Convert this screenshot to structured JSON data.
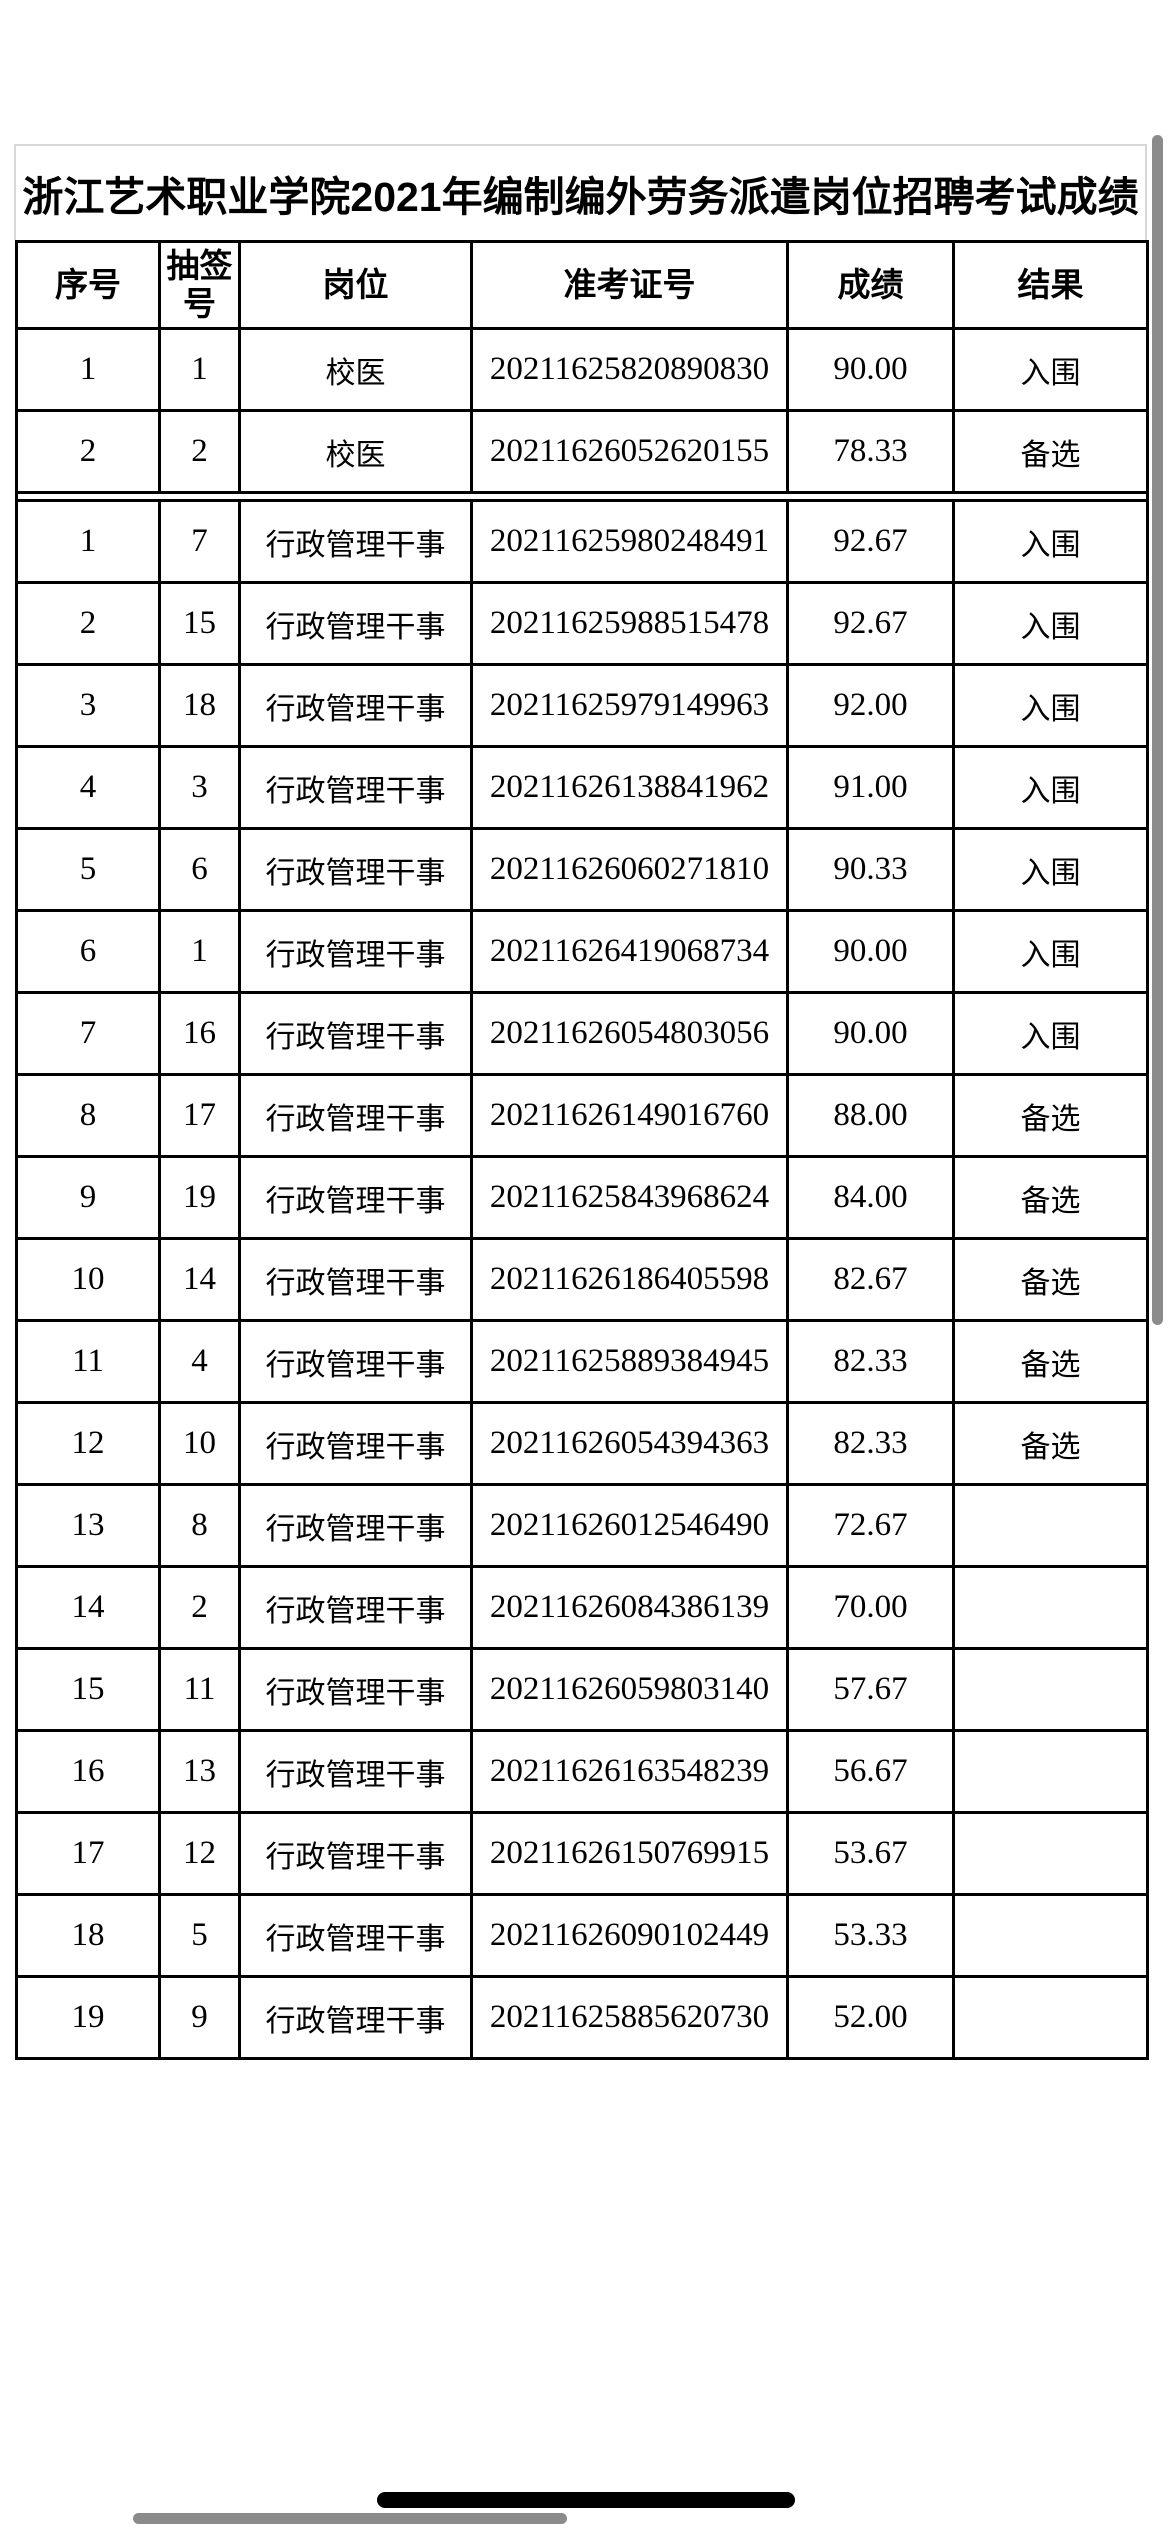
{
  "title": "浙江艺术职业学院2021年编制编外劳务派遣岗位招聘考试成绩",
  "table": {
    "headers": [
      "序号",
      "抽签号",
      "岗位",
      "准考证号",
      "成绩",
      "结果"
    ],
    "column_names": [
      "index",
      "lottery-number",
      "position",
      "ticket-number",
      "score",
      "result"
    ],
    "sections": [
      {
        "position": "校医",
        "rows": [
          [
            "1",
            "1",
            "校医",
            "20211625820890830",
            "90.00",
            "入围"
          ],
          [
            "2",
            "2",
            "校医",
            "20211626052620155",
            "78.33",
            "备选"
          ]
        ]
      },
      {
        "position": "行政管理干事",
        "rows": [
          [
            "1",
            "7",
            "行政管理干事",
            "20211625980248491",
            "92.67",
            "入围"
          ],
          [
            "2",
            "15",
            "行政管理干事",
            "20211625988515478",
            "92.67",
            "入围"
          ],
          [
            "3",
            "18",
            "行政管理干事",
            "20211625979149963",
            "92.00",
            "入围"
          ],
          [
            "4",
            "3",
            "行政管理干事",
            "20211626138841962",
            "91.00",
            "入围"
          ],
          [
            "5",
            "6",
            "行政管理干事",
            "20211626060271810",
            "90.33",
            "入围"
          ],
          [
            "6",
            "1",
            "行政管理干事",
            "20211626419068734",
            "90.00",
            "入围"
          ],
          [
            "7",
            "16",
            "行政管理干事",
            "20211626054803056",
            "90.00",
            "入围"
          ],
          [
            "8",
            "17",
            "行政管理干事",
            "20211626149016760",
            "88.00",
            "备选"
          ],
          [
            "9",
            "19",
            "行政管理干事",
            "20211625843968624",
            "84.00",
            "备选"
          ],
          [
            "10",
            "14",
            "行政管理干事",
            "20211626186405598",
            "82.67",
            "备选"
          ],
          [
            "11",
            "4",
            "行政管理干事",
            "20211625889384945",
            "82.33",
            "备选"
          ],
          [
            "12",
            "10",
            "行政管理干事",
            "20211626054394363",
            "82.33",
            "备选"
          ],
          [
            "13",
            "8",
            "行政管理干事",
            "20211626012546490",
            "72.67",
            ""
          ],
          [
            "14",
            "2",
            "行政管理干事",
            "20211626084386139",
            "70.00",
            ""
          ],
          [
            "15",
            "11",
            "行政管理干事",
            "20211626059803140",
            "57.67",
            ""
          ],
          [
            "16",
            "13",
            "行政管理干事",
            "20211626163548239",
            "56.67",
            ""
          ],
          [
            "17",
            "12",
            "行政管理干事",
            "20211626150769915",
            "53.67",
            ""
          ],
          [
            "18",
            "5",
            "行政管理干事",
            "20211626090102449",
            "53.33",
            ""
          ],
          [
            "19",
            "9",
            "行政管理干事",
            "20211625885620730",
            "52.00",
            ""
          ]
        ]
      }
    ]
  },
  "chrome": {
    "scrollbar_color": "#8b8b8b",
    "home_indicator_color": "#000000"
  }
}
